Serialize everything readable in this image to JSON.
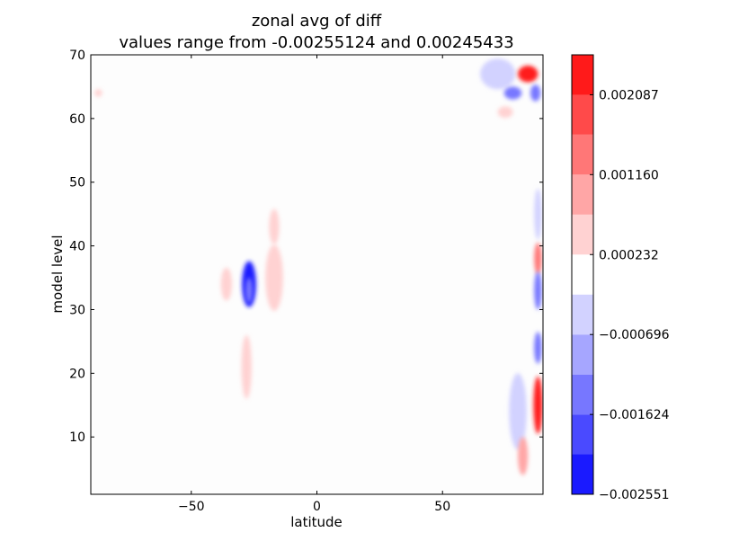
{
  "chart_data": {
    "type": "heatmap",
    "title_line1": "zonal avg of diff",
    "title_line2": "values range from -0.00255124 and 0.00245433",
    "xlabel": "latitude",
    "ylabel": "model level",
    "xlim": [
      -90,
      90
    ],
    "ylim": [
      1,
      70
    ],
    "x_ticks": [
      -50,
      0,
      50
    ],
    "y_ticks": [
      10,
      20,
      30,
      40,
      50,
      60,
      70
    ],
    "grid": false,
    "colorbar": {
      "range": [
        -0.002551,
        0.002551
      ],
      "levels": [
        -0.002551,
        -0.002087,
        -0.001624,
        -0.00116,
        -0.000696,
        -0.000232,
        0.000232,
        0.000696,
        0.00116,
        0.001624,
        0.002087,
        0.002551
      ],
      "colors": [
        "#1a1aff",
        "#4a4aff",
        "#7777ff",
        "#a6a6ff",
        "#d2d2ff",
        "#ffffff",
        "#ffd2d2",
        "#ffa6a6",
        "#ff7777",
        "#ff4a4a",
        "#ff1a1a"
      ],
      "tick_values": [
        -0.002551,
        -0.001624,
        -0.000696,
        0.000232,
        0.00116,
        0.002087
      ],
      "tick_labels": [
        "−0.002551",
        "−0.001624",
        "−0.000696",
        "0.000232",
        "0.001160",
        "0.002087"
      ]
    },
    "features": [
      {
        "lat": -87,
        "level": 64,
        "value": 0.0003
      },
      {
        "lat": -36,
        "level": 34,
        "value": 0.0003
      },
      {
        "lat": -27,
        "level": 34,
        "value": -0.0021
      },
      {
        "lat": -27,
        "level": 33,
        "value": -0.0012
      },
      {
        "lat": -28,
        "level": 21,
        "value": 0.0003
      },
      {
        "lat": -17,
        "level": 35,
        "value": 0.0003
      },
      {
        "lat": -17,
        "level": 43,
        "value": 0.0003
      },
      {
        "lat": 72,
        "level": 67,
        "value": -0.0003
      },
      {
        "lat": 84,
        "level": 67,
        "value": 0.0024
      },
      {
        "lat": 78,
        "level": 64,
        "value": -0.0012
      },
      {
        "lat": 87,
        "level": 64,
        "value": -0.0012
      },
      {
        "lat": 75,
        "level": 61,
        "value": 0.0005
      },
      {
        "lat": 88,
        "level": 45,
        "value": -0.0004
      },
      {
        "lat": 88,
        "level": 38,
        "value": 0.0012
      },
      {
        "lat": 88,
        "level": 33,
        "value": -0.0016
      },
      {
        "lat": 88,
        "level": 24,
        "value": -0.0012
      },
      {
        "lat": 88,
        "level": 15,
        "value": 0.0021
      },
      {
        "lat": 80,
        "level": 14,
        "value": -0.0005
      },
      {
        "lat": 82,
        "level": 7,
        "value": 0.0008
      }
    ]
  }
}
